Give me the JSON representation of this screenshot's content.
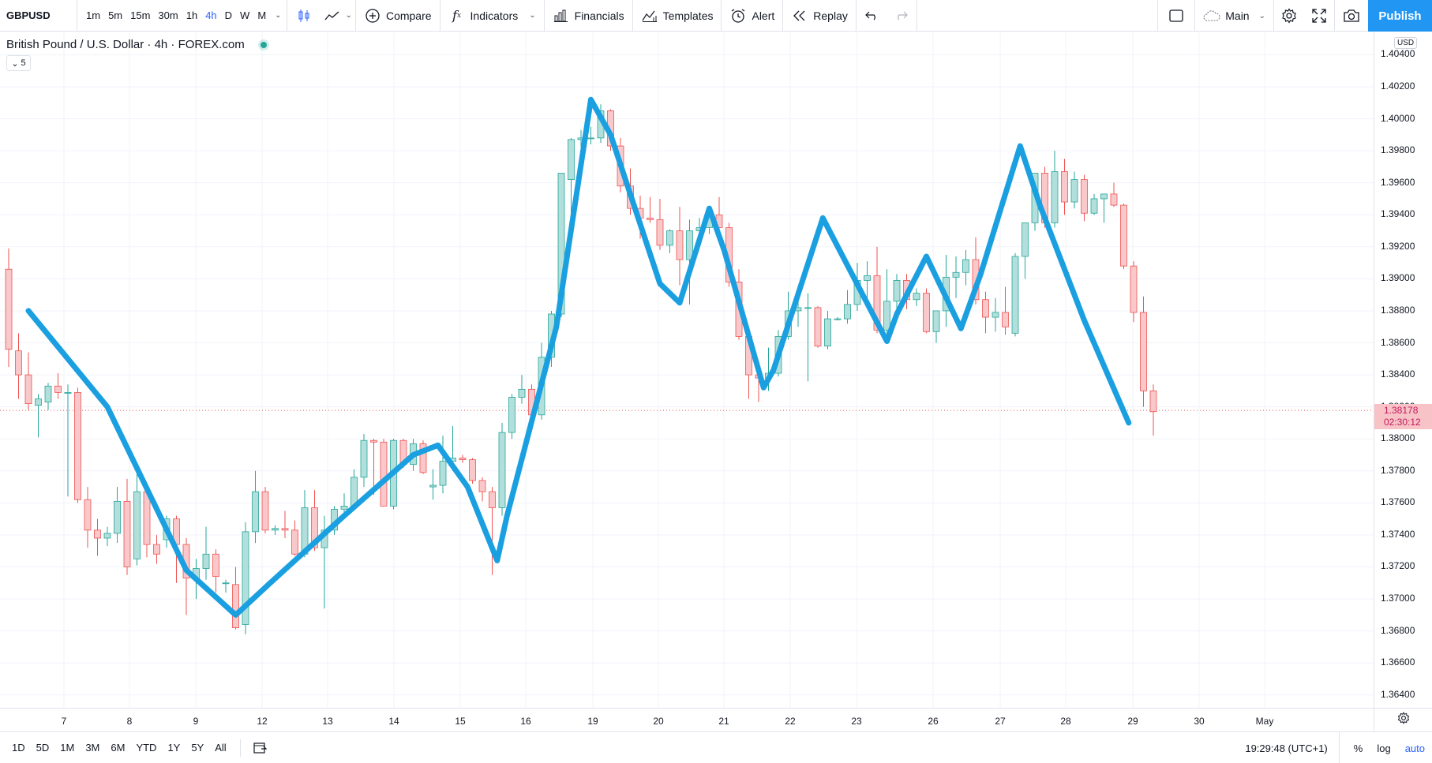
{
  "toolbar": {
    "symbol": "GBPUSD",
    "intervals": [
      "1m",
      "5m",
      "15m",
      "30m",
      "1h",
      "4h",
      "D",
      "W",
      "M"
    ],
    "active_interval": "4h",
    "compare_label": "Compare",
    "indicators_label": "Indicators",
    "financials_label": "Financials",
    "templates_label": "Templates",
    "alert_label": "Alert",
    "replay_label": "Replay",
    "layout_label": "Main",
    "publish_label": "Publish",
    "accent": "#2196f3"
  },
  "legend": {
    "title": "British Pound / U.S. Dollar · 4h · FOREX.com",
    "collapse_count": "5"
  },
  "price_axis": {
    "currency": "USD",
    "last_price": "1.38178",
    "countdown": "02:30:12",
    "last_price_value": 1.38178
  },
  "bottom": {
    "ranges": [
      "1D",
      "5D",
      "1M",
      "3M",
      "6M",
      "YTD",
      "1Y",
      "5Y",
      "All"
    ],
    "clock": "19:29:48 (UTC+1)",
    "percent_label": "%",
    "log_label": "log",
    "auto_label": "auto"
  },
  "chart_data": {
    "type": "candlestick",
    "ylim": [
      1.3632,
      1.4054
    ],
    "yticks": [
      "1.36400",
      "1.36600",
      "1.36800",
      "1.37000",
      "1.37200",
      "1.37400",
      "1.37600",
      "1.37800",
      "1.38000",
      "1.38200",
      "1.38400",
      "1.38600",
      "1.38800",
      "1.39000",
      "1.39200",
      "1.39400",
      "1.39600",
      "1.39800",
      "1.40000",
      "1.40200",
      "1.40400"
    ],
    "xticks": [
      "7",
      "8",
      "9",
      "12",
      "13",
      "14",
      "15",
      "16",
      "19",
      "20",
      "21",
      "22",
      "23",
      "26",
      "27",
      "28",
      "29",
      "30",
      "May"
    ],
    "up_color": "#26a69a",
    "down_color": "#ef5350",
    "drawing_color": "#1a9fe0",
    "candles": [
      [
        1.3906,
        1.3919,
        1.3845,
        1.3856
      ],
      [
        1.3855,
        1.3866,
        1.3825,
        1.384
      ],
      [
        1.384,
        1.3854,
        1.3818,
        1.3822
      ],
      [
        1.3821,
        1.3828,
        1.3801,
        1.3825
      ],
      [
        1.3823,
        1.3835,
        1.3818,
        1.3833
      ],
      [
        1.3833,
        1.3841,
        1.3825,
        1.3829
      ],
      [
        1.3829,
        1.3834,
        1.3764,
        1.3829
      ],
      [
        1.3829,
        1.3832,
        1.376,
        1.3762
      ],
      [
        1.3762,
        1.377,
        1.3732,
        1.3743
      ],
      [
        1.3743,
        1.375,
        1.3727,
        1.3738
      ],
      [
        1.3738,
        1.3745,
        1.3733,
        1.3741
      ],
      [
        1.3741,
        1.377,
        1.3735,
        1.3761
      ],
      [
        1.3761,
        1.3775,
        1.3715,
        1.372
      ],
      [
        1.3725,
        1.3778,
        1.3721,
        1.3767
      ],
      [
        1.3767,
        1.377,
        1.3726,
        1.3734
      ],
      [
        1.3734,
        1.374,
        1.3722,
        1.3728
      ],
      [
        1.3737,
        1.3752,
        1.3732,
        1.375
      ],
      [
        1.375,
        1.3752,
        1.371,
        1.3734
      ],
      [
        1.3734,
        1.3738,
        1.369,
        1.3713
      ],
      [
        1.3713,
        1.3725,
        1.37,
        1.3719
      ],
      [
        1.3719,
        1.3745,
        1.3712,
        1.3728
      ],
      [
        1.3728,
        1.3731,
        1.3704,
        1.3714
      ],
      [
        1.371,
        1.3712,
        1.3704,
        1.371
      ],
      [
        1.3709,
        1.372,
        1.3681,
        1.3682
      ],
      [
        1.3684,
        1.3748,
        1.3678,
        1.3742
      ],
      [
        1.3742,
        1.378,
        1.3735,
        1.3767
      ],
      [
        1.3767,
        1.377,
        1.3741,
        1.3743
      ],
      [
        1.3743,
        1.3746,
        1.374,
        1.3744
      ],
      [
        1.3744,
        1.3755,
        1.3738,
        1.3743
      ],
      [
        1.3743,
        1.3749,
        1.3727,
        1.3728
      ],
      [
        1.3728,
        1.3768,
        1.3726,
        1.3757
      ],
      [
        1.3757,
        1.3768,
        1.373,
        1.3732
      ],
      [
        1.3732,
        1.3752,
        1.3694,
        1.3743
      ],
      [
        1.3743,
        1.3758,
        1.374,
        1.3756
      ],
      [
        1.3756,
        1.3766,
        1.3752,
        1.3758
      ],
      [
        1.3758,
        1.3781,
        1.3756,
        1.3776
      ],
      [
        1.3776,
        1.3803,
        1.377,
        1.3799
      ],
      [
        1.3799,
        1.38,
        1.3765,
        1.3798
      ],
      [
        1.3798,
        1.38,
        1.3758,
        1.3758
      ],
      [
        1.3758,
        1.38,
        1.3756,
        1.3799
      ],
      [
        1.3799,
        1.38,
        1.3782,
        1.3784
      ],
      [
        1.3784,
        1.38,
        1.378,
        1.3797
      ],
      [
        1.3797,
        1.3799,
        1.3778,
        1.3779
      ],
      [
        1.377,
        1.3781,
        1.3762,
        1.3771
      ],
      [
        1.3771,
        1.3802,
        1.3766,
        1.3786
      ],
      [
        1.3786,
        1.3808,
        1.378,
        1.3788
      ],
      [
        1.3788,
        1.379,
        1.3785,
        1.3787
      ],
      [
        1.3787,
        1.3788,
        1.3772,
        1.3774
      ],
      [
        1.3774,
        1.3776,
        1.3761,
        1.3767
      ],
      [
        1.3767,
        1.377,
        1.3715,
        1.3757
      ],
      [
        1.3757,
        1.381,
        1.3752,
        1.3804
      ],
      [
        1.3804,
        1.3828,
        1.38,
        1.3826
      ],
      [
        1.3826,
        1.384,
        1.3822,
        1.3831
      ],
      [
        1.3831,
        1.3834,
        1.3808,
        1.3815
      ],
      [
        1.3815,
        1.386,
        1.3812,
        1.3851
      ],
      [
        1.3851,
        1.388,
        1.3845,
        1.3878
      ],
      [
        1.3878,
        1.3966,
        1.3876,
        1.3966
      ],
      [
        1.3962,
        1.3988,
        1.3935,
        1.3987
      ],
      [
        1.3987,
        1.3993,
        1.3982,
        1.3988
      ],
      [
        1.3988,
        1.3995,
        1.3984,
        1.3988
      ],
      [
        1.3988,
        1.4009,
        1.3985,
        1.4005
      ],
      [
        1.4005,
        1.4006,
        1.398,
        1.3983
      ],
      [
        1.3983,
        1.3988,
        1.3954,
        1.3958
      ],
      [
        1.3958,
        1.3969,
        1.394,
        1.3944
      ],
      [
        1.3944,
        1.3952,
        1.3925,
        1.3938
      ],
      [
        1.3938,
        1.3951,
        1.3935,
        1.3937
      ],
      [
        1.3937,
        1.395,
        1.3918,
        1.3921
      ],
      [
        1.3921,
        1.3931,
        1.3916,
        1.393
      ],
      [
        1.393,
        1.3945,
        1.3896,
        1.3912
      ],
      [
        1.3912,
        1.3937,
        1.3884,
        1.393
      ],
      [
        1.393,
        1.3938,
        1.3926,
        1.3932
      ],
      [
        1.3932,
        1.3944,
        1.3928,
        1.394
      ],
      [
        1.394,
        1.3951,
        1.3923,
        1.3932
      ],
      [
        1.3932,
        1.3935,
        1.3895,
        1.3898
      ],
      [
        1.3898,
        1.3906,
        1.3862,
        1.3864
      ],
      [
        1.3864,
        1.387,
        1.3825,
        1.384
      ],
      [
        1.384,
        1.3847,
        1.3823,
        1.3838
      ],
      [
        1.3838,
        1.3857,
        1.383,
        1.3841
      ],
      [
        1.3841,
        1.3868,
        1.3839,
        1.3864
      ],
      [
        1.3864,
        1.3892,
        1.3862,
        1.388
      ],
      [
        1.388,
        1.3891,
        1.387,
        1.3882
      ],
      [
        1.3882,
        1.3891,
        1.3836,
        1.3882
      ],
      [
        1.3882,
        1.3883,
        1.3857,
        1.3858
      ],
      [
        1.3858,
        1.388,
        1.3856,
        1.3875
      ],
      [
        1.3875,
        1.3876,
        1.3874,
        1.3875
      ],
      [
        1.3875,
        1.3893,
        1.3872,
        1.3884
      ],
      [
        1.3884,
        1.391,
        1.388,
        1.3899
      ],
      [
        1.3899,
        1.3911,
        1.3886,
        1.3902
      ],
      [
        1.3902,
        1.392,
        1.3866,
        1.3868
      ],
      [
        1.3868,
        1.3906,
        1.3865,
        1.3886
      ],
      [
        1.3886,
        1.3903,
        1.388,
        1.3899
      ],
      [
        1.3899,
        1.3903,
        1.3881,
        1.3887
      ],
      [
        1.3887,
        1.3894,
        1.3883,
        1.3891
      ],
      [
        1.3891,
        1.3894,
        1.3866,
        1.3867
      ],
      [
        1.3867,
        1.388,
        1.386,
        1.388
      ],
      [
        1.388,
        1.3915,
        1.387,
        1.3901
      ],
      [
        1.3901,
        1.3914,
        1.3888,
        1.3904
      ],
      [
        1.3904,
        1.3918,
        1.3896,
        1.3912
      ],
      [
        1.3912,
        1.3926,
        1.3884,
        1.3887
      ],
      [
        1.3887,
        1.3892,
        1.3866,
        1.3876
      ],
      [
        1.3876,
        1.3888,
        1.3867,
        1.3879
      ],
      [
        1.3879,
        1.3895,
        1.3865,
        1.387
      ],
      [
        1.3866,
        1.3916,
        1.3864,
        1.3914
      ],
      [
        1.3914,
        1.3934,
        1.39,
        1.3935
      ],
      [
        1.3935,
        1.3966,
        1.393,
        1.3966
      ],
      [
        1.3966,
        1.397,
        1.3932,
        1.3935
      ],
      [
        1.3935,
        1.398,
        1.3932,
        1.3967
      ],
      [
        1.3967,
        1.3975,
        1.394,
        1.3948
      ],
      [
        1.3948,
        1.3967,
        1.3944,
        1.3962
      ],
      [
        1.3962,
        1.3965,
        1.3936,
        1.3941
      ],
      [
        1.3941,
        1.3953,
        1.394,
        1.395
      ],
      [
        1.395,
        1.3953,
        1.3935,
        1.3953
      ],
      [
        1.3953,
        1.396,
        1.3945,
        1.3946
      ],
      [
        1.3946,
        1.3947,
        1.3906,
        1.3908
      ],
      [
        1.3908,
        1.3911,
        1.3873,
        1.3879
      ],
      [
        1.3879,
        1.3889,
        1.382,
        1.383
      ],
      [
        1.383,
        1.3834,
        1.3802,
        1.3817
      ]
    ],
    "trendline": [
      [
        2.0,
        1.388
      ],
      [
        10.0,
        1.382
      ],
      [
        18.0,
        1.3718
      ],
      [
        23.0,
        1.369
      ],
      [
        26.5,
        1.371
      ],
      [
        34.0,
        1.3752
      ],
      [
        41.0,
        1.379
      ],
      [
        43.5,
        1.3796
      ],
      [
        46.5,
        1.377
      ],
      [
        49.5,
        1.3724
      ],
      [
        50.5,
        1.3752
      ],
      [
        55.5,
        1.387
      ],
      [
        59.0,
        1.4012
      ],
      [
        61.0,
        1.399
      ],
      [
        66.0,
        1.3897
      ],
      [
        68.0,
        1.3885
      ],
      [
        71.0,
        1.3944
      ],
      [
        72.5,
        1.3918
      ],
      [
        76.5,
        1.3832
      ],
      [
        77.5,
        1.3843
      ],
      [
        82.5,
        1.3938
      ],
      [
        89.0,
        1.3861
      ],
      [
        90.0,
        1.3878
      ],
      [
        93.0,
        1.3914
      ],
      [
        96.5,
        1.3869
      ],
      [
        98.5,
        1.3903
      ],
      [
        102.5,
        1.3983
      ],
      [
        104.5,
        1.3946
      ],
      [
        109.0,
        1.3874
      ],
      [
        113.5,
        1.381
      ]
    ]
  }
}
